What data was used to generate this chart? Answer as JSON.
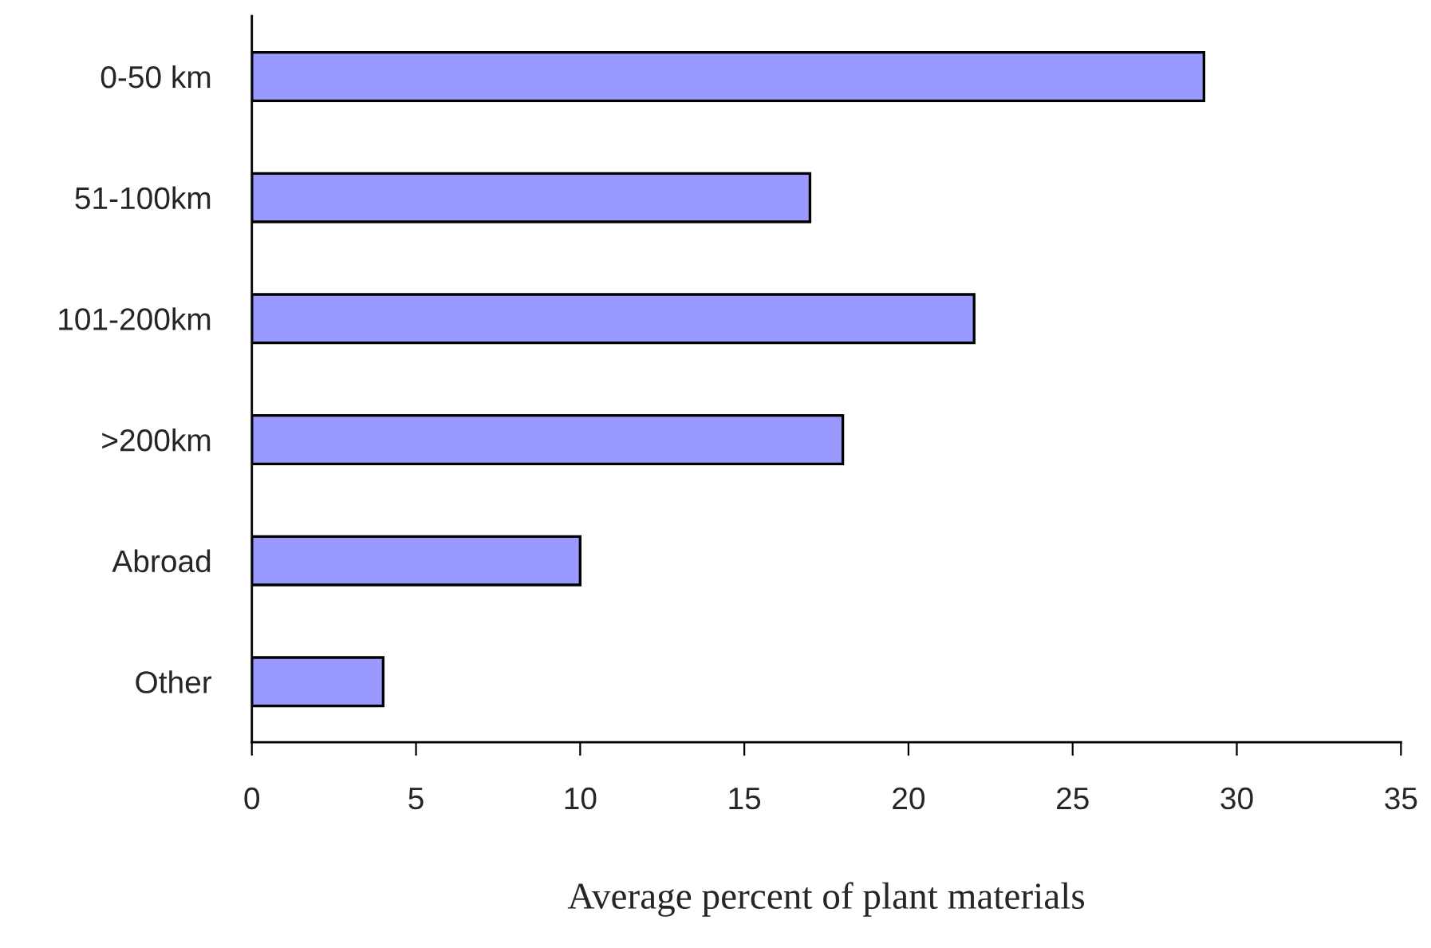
{
  "chart_data": {
    "type": "bar",
    "orientation": "horizontal",
    "xlabel": "Average percent of plant materials",
    "categories": [
      "0-50 km",
      "51-100km",
      "101-200km",
      ">200km",
      "Abroad",
      "Other"
    ],
    "values": [
      29,
      17,
      22,
      18,
      10,
      4
    ],
    "color": "#9999ff",
    "xlim": [
      0,
      35
    ],
    "xticks": [
      0,
      5,
      10,
      15,
      20,
      25,
      30,
      35
    ],
    "grid": false,
    "legend": false
  }
}
